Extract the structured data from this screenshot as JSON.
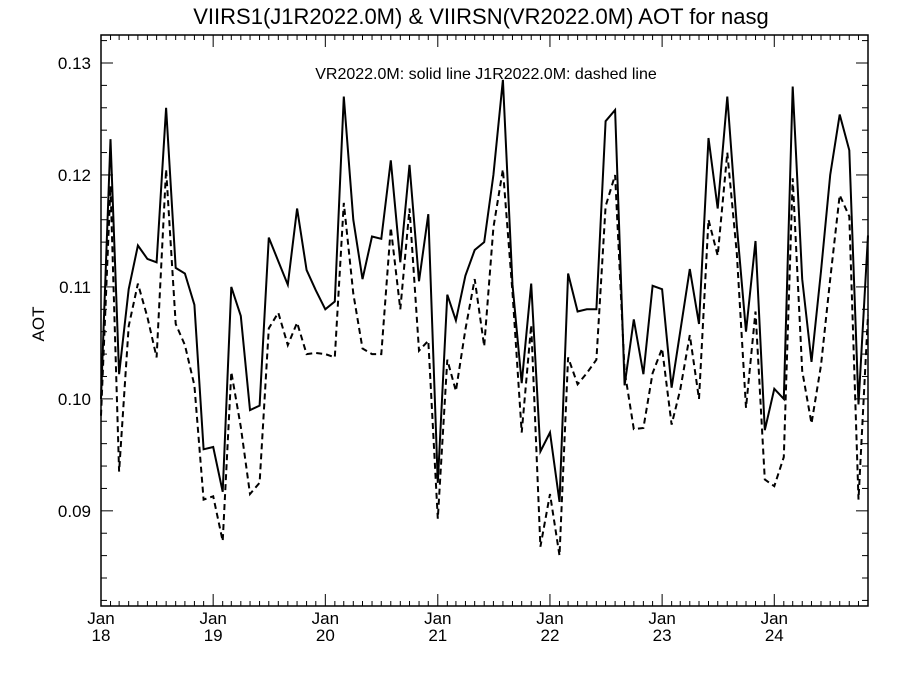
{
  "chart_data": {
    "type": "line",
    "title": "VIIRS1(J1R2022.0M) & VIIRSN(VR2022.0M)  AOT for nasg",
    "annotation": "VR2022.0M: solid line   J1R2022.0M: dashed line",
    "ylabel": "AOT",
    "xlabel": "",
    "ylim": [
      0.0815,
      0.1325
    ],
    "xlim": [
      "2018-01-01",
      "2024-11-01"
    ],
    "yticks": [
      "0.09",
      "0.10",
      "0.11",
      "0.12",
      "0.13"
    ],
    "xticks": [
      {
        "date": "2018-01-01",
        "month": "Jan",
        "year": "18"
      },
      {
        "date": "2019-01-01",
        "month": "Jan",
        "year": "19"
      },
      {
        "date": "2020-01-01",
        "month": "Jan",
        "year": "20"
      },
      {
        "date": "2021-01-01",
        "month": "Jan",
        "year": "21"
      },
      {
        "date": "2022-01-01",
        "month": "Jan",
        "year": "22"
      },
      {
        "date": "2023-01-01",
        "month": "Jan",
        "year": "23"
      },
      {
        "date": "2024-01-01",
        "month": "Jan",
        "year": "24"
      }
    ],
    "grid": false,
    "series": [
      {
        "name": "VR2022.0M",
        "style": "solid",
        "color": "#000000",
        "x": [
          "2018-01-01",
          "2018-02-01",
          "2018-03-01",
          "2018-04-01",
          "2018-05-01",
          "2018-06-01",
          "2018-07-01",
          "2018-08-01",
          "2018-09-01",
          "2018-10-01",
          "2018-11-01",
          "2018-12-01",
          "2019-01-01",
          "2019-02-01",
          "2019-03-01",
          "2019-04-01",
          "2019-05-01",
          "2019-06-01",
          "2019-07-01",
          "2019-08-01",
          "2019-09-01",
          "2019-10-01",
          "2019-11-01",
          "2019-12-01",
          "2020-01-01",
          "2020-02-01",
          "2020-03-01",
          "2020-04-01",
          "2020-05-01",
          "2020-06-01",
          "2020-07-01",
          "2020-08-01",
          "2020-09-01",
          "2020-10-01",
          "2020-11-01",
          "2020-12-01",
          "2021-01-01",
          "2021-02-01",
          "2021-03-01",
          "2021-04-01",
          "2021-05-01",
          "2021-06-01",
          "2021-07-01",
          "2021-08-01",
          "2021-09-01",
          "2021-10-01",
          "2021-11-01",
          "2021-12-01",
          "2022-01-01",
          "2022-02-01",
          "2022-03-01",
          "2022-04-01",
          "2022-05-01",
          "2022-06-01",
          "2022-07-01",
          "2022-08-01",
          "2022-09-01",
          "2022-10-01",
          "2022-11-01",
          "2022-12-01",
          "2023-01-01",
          "2023-02-01",
          "2023-03-01",
          "2023-04-01",
          "2023-05-01",
          "2023-06-01",
          "2023-07-01",
          "2023-08-01",
          "2023-09-01",
          "2023-10-01",
          "2023-11-01",
          "2023-12-01",
          "2024-01-01",
          "2024-02-01",
          "2024-03-01",
          "2024-04-01",
          "2024-05-01",
          "2024-06-01",
          "2024-07-01",
          "2024-08-01",
          "2024-09-01",
          "2024-10-01",
          "2024-11-01"
        ],
        "y": [
          0.1,
          0.1232,
          0.1022,
          0.1098,
          0.1137,
          0.1125,
          0.1122,
          0.126,
          0.1117,
          0.1112,
          0.1084,
          0.0955,
          0.0957,
          0.0917,
          0.11,
          0.1074,
          0.099,
          0.0994,
          0.1144,
          0.1123,
          0.1102,
          0.117,
          0.1115,
          0.1097,
          0.108,
          0.1087,
          0.127,
          0.116,
          0.1107,
          0.1145,
          0.1143,
          0.1213,
          0.1122,
          0.1209,
          0.1105,
          0.1165,
          0.0925,
          0.1093,
          0.107,
          0.111,
          0.1133,
          0.114,
          0.12,
          0.1285,
          0.1102,
          0.1014,
          0.1103,
          0.0953,
          0.097,
          0.0908,
          0.1112,
          0.1078,
          0.108,
          0.108,
          0.1248,
          0.1258,
          0.1012,
          0.1071,
          0.1022,
          0.1101,
          0.1098,
          0.101,
          0.106,
          0.1116,
          0.1067,
          0.1233,
          0.117,
          0.127,
          0.1155,
          0.106,
          0.1141,
          0.0972,
          0.1009,
          0.1,
          0.1279,
          0.1107,
          0.1033,
          0.1114,
          0.12,
          0.1254,
          0.1222,
          0.0995,
          0.1146
        ]
      },
      {
        "name": "J1R2022.0M",
        "style": "dashed",
        "color": "#000000",
        "x": [
          "2018-01-01",
          "2018-02-01",
          "2018-03-01",
          "2018-04-01",
          "2018-05-01",
          "2018-06-01",
          "2018-07-01",
          "2018-08-01",
          "2018-09-01",
          "2018-10-01",
          "2018-11-01",
          "2018-12-01",
          "2019-01-01",
          "2019-02-01",
          "2019-03-01",
          "2019-04-01",
          "2019-05-01",
          "2019-06-01",
          "2019-07-01",
          "2019-08-01",
          "2019-09-01",
          "2019-10-01",
          "2019-11-01",
          "2019-12-01",
          "2020-01-01",
          "2020-02-01",
          "2020-03-01",
          "2020-04-01",
          "2020-05-01",
          "2020-06-01",
          "2020-07-01",
          "2020-08-01",
          "2020-09-01",
          "2020-10-01",
          "2020-11-01",
          "2020-12-01",
          "2021-01-01",
          "2021-02-01",
          "2021-03-01",
          "2021-04-01",
          "2021-05-01",
          "2021-06-01",
          "2021-07-01",
          "2021-08-01",
          "2021-09-01",
          "2021-10-01",
          "2021-11-01",
          "2021-12-01",
          "2022-01-01",
          "2022-02-01",
          "2022-03-01",
          "2022-04-01",
          "2022-05-01",
          "2022-06-01",
          "2022-07-01",
          "2022-08-01",
          "2022-09-01",
          "2022-10-01",
          "2022-11-01",
          "2022-12-01",
          "2023-01-01",
          "2023-02-01",
          "2023-03-01",
          "2023-04-01",
          "2023-05-01",
          "2023-06-01",
          "2023-07-01",
          "2023-08-01",
          "2023-09-01",
          "2023-10-01",
          "2023-11-01",
          "2023-12-01",
          "2024-01-01",
          "2024-02-01",
          "2024-03-01",
          "2024-04-01",
          "2024-05-01",
          "2024-06-01",
          "2024-07-01",
          "2024-08-01",
          "2024-09-01",
          "2024-10-01",
          "2024-11-01"
        ],
        "y": [
          0.0985,
          0.119,
          0.0935,
          0.1065,
          0.1103,
          0.1073,
          0.1037,
          0.1205,
          0.1067,
          0.1048,
          0.1012,
          0.091,
          0.0913,
          0.0873,
          0.1024,
          0.0975,
          0.0915,
          0.0925,
          0.1063,
          0.1077,
          0.1048,
          0.1068,
          0.104,
          0.1041,
          0.104,
          0.1037,
          0.1175,
          0.1094,
          0.1045,
          0.104,
          0.104,
          0.1153,
          0.108,
          0.117,
          0.1043,
          0.1052,
          0.0893,
          0.1035,
          0.1007,
          0.1062,
          0.1107,
          0.1047,
          0.1153,
          0.1205,
          0.1095,
          0.097,
          0.1066,
          0.0868,
          0.0915,
          0.086,
          0.1037,
          0.1013,
          0.1023,
          0.1035,
          0.1172,
          0.12,
          0.1025,
          0.0973,
          0.0974,
          0.1023,
          0.1045,
          0.0977,
          0.1008,
          0.1057,
          0.1,
          0.116,
          0.1128,
          0.122,
          0.113,
          0.0992,
          0.1078,
          0.0928,
          0.0922,
          0.0948,
          0.1197,
          0.1025,
          0.0978,
          0.103,
          0.1107,
          0.1182,
          0.1163,
          0.091,
          0.1075
        ]
      }
    ]
  }
}
